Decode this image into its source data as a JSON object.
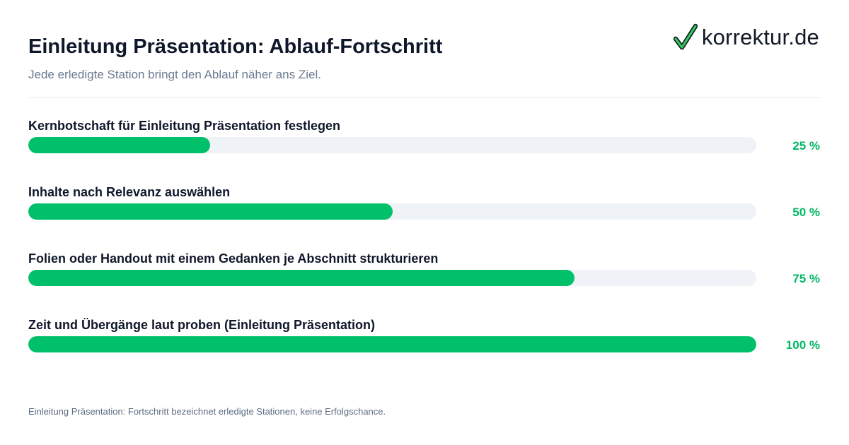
{
  "header": {
    "title": "Einleitung Präsentation: Ablauf-Fortschritt",
    "subtitle": "Jede erledigte Station bringt den Ablauf näher ans Ziel.",
    "logo_text": "korrektur.de",
    "logo_icon": "checkmark-icon"
  },
  "colors": {
    "fill": "#00c16a",
    "track": "#eff3f8",
    "percent_text": "#00b864",
    "title_text": "#0f172a",
    "subtitle_text": "#6b7a90"
  },
  "chart_data": {
    "type": "bar",
    "orientation": "horizontal",
    "categories": [
      "Kernbotschaft für Einleitung Präsentation festlegen",
      "Inhalte nach Relevanz auswählen",
      "Folien oder Handout mit einem Gedanken je Abschnitt strukturieren",
      "Zeit und Übergänge laut proben (Einleitung Präsentation)"
    ],
    "values": [
      25,
      50,
      75,
      100
    ],
    "value_labels": [
      "25 %",
      "50 %",
      "75 %",
      "100 %"
    ],
    "xlim": [
      0,
      100
    ],
    "grid": false
  },
  "footnote": "Einleitung Präsentation: Fortschritt bezeichnet erledigte Stationen, keine Erfolgschance."
}
